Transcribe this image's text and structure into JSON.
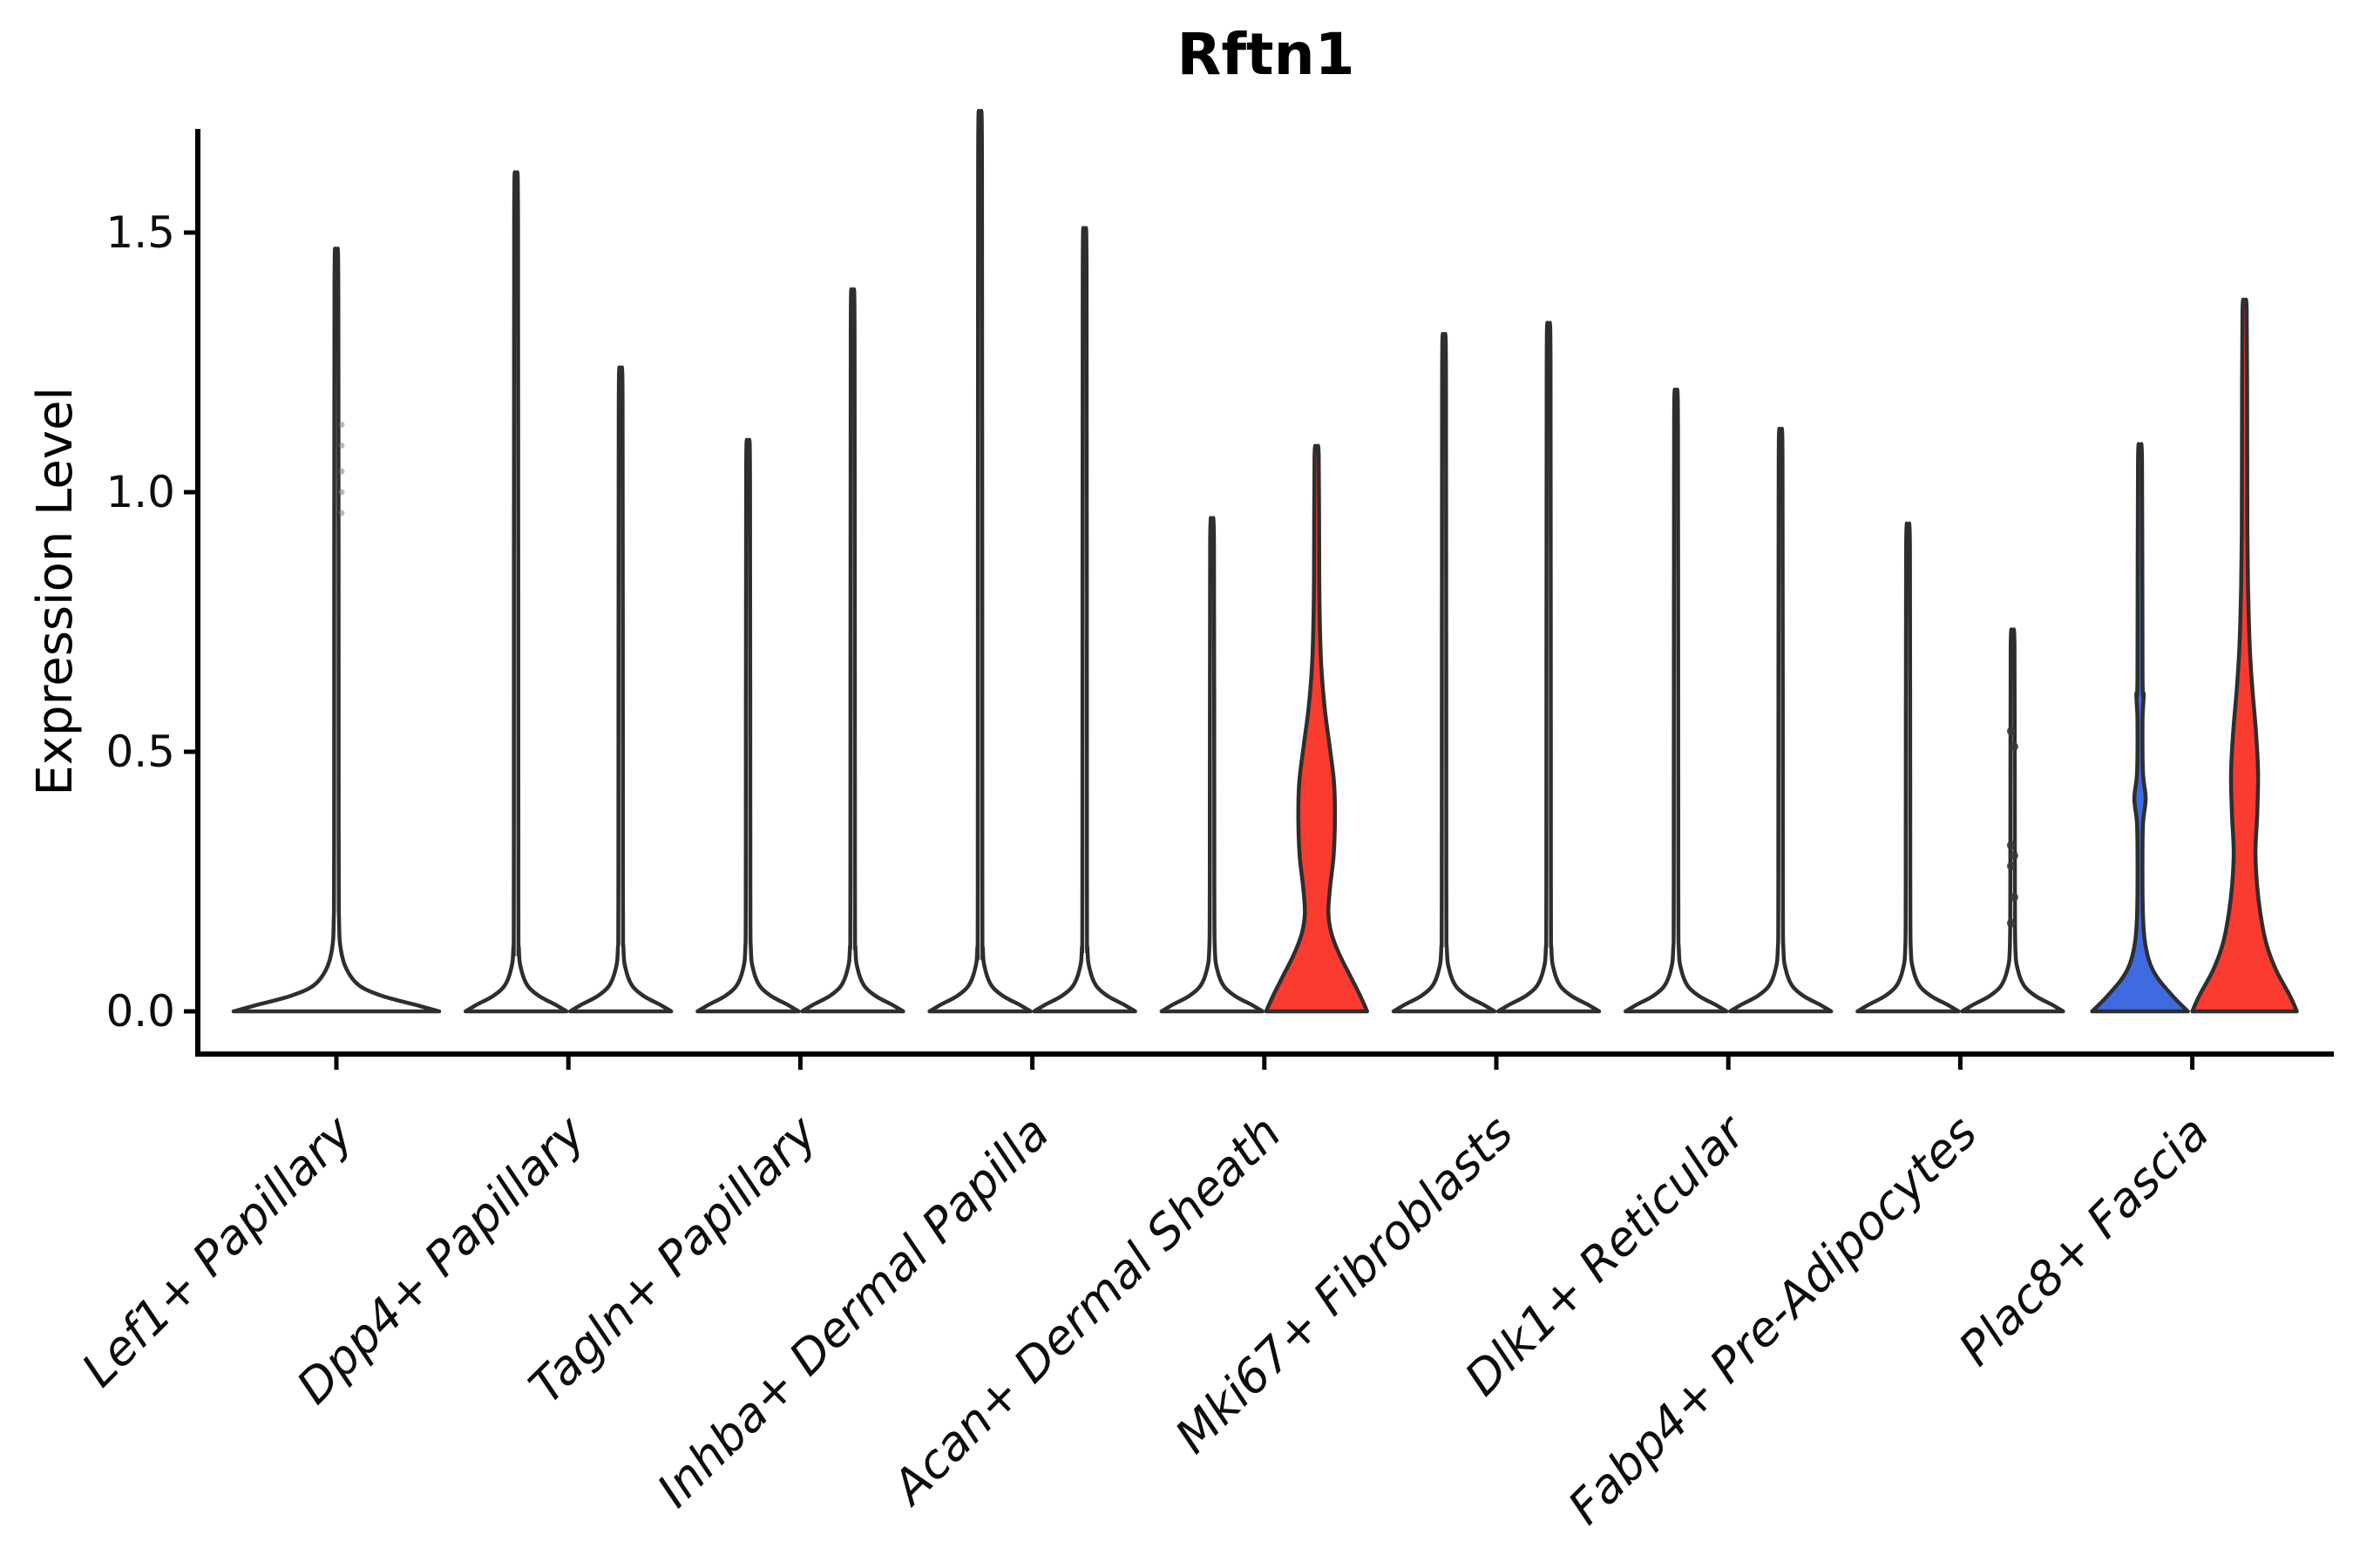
{
  "chart_data": {
    "type": "violin",
    "title": "Rftn1",
    "ylabel": "Expression Level",
    "xlabel": "",
    "ylim": [
      -0.08,
      1.7
    ],
    "grid": false,
    "legend": "none",
    "y_ticks": [
      {
        "value": 0.0,
        "label": "0.0"
      },
      {
        "value": 0.5,
        "label": "0.5"
      },
      {
        "value": 1.0,
        "label": "1.0"
      },
      {
        "value": 1.5,
        "label": "1.5"
      }
    ],
    "categories": [
      "Lef1+ Papillary",
      "Dpp4+ Papillary",
      "Tagln+ Papillary",
      "Inhba+ Dermal Papilla",
      "Acan+ Dermal Sheath",
      "Mki67+ Fibroblasts",
      "Dlk1+ Reticular",
      "Fabp4+ Pre-Adipocytes",
      "Plac8+ Fascia"
    ],
    "colors": {
      "white": "#FFFFFF",
      "blue": "#3F6AE0",
      "red": "#F93B30",
      "violin_outline": "#2E2E2E",
      "axis": "#000000",
      "point": "#3A3A3A",
      "faint_point": "#777777"
    },
    "violins": [
      {
        "category": "Lef1+ Papillary",
        "slot": 0,
        "side": "full",
        "fill": "white",
        "max_expression": 1.39,
        "profile": [
          [
            0,
            118
          ],
          [
            0.012,
            92
          ],
          [
            0.03,
            52
          ],
          [
            0.05,
            26
          ],
          [
            0.08,
            12
          ],
          [
            0.12,
            5
          ],
          [
            0.18,
            3
          ],
          [
            0.35,
            2.6
          ],
          [
            1.39,
            2.2
          ]
        ],
        "points": [
          0.96,
          1.0,
          1.04,
          1.09,
          1.13
        ],
        "points_faint": true
      },
      {
        "category": "Dpp4+ Papillary",
        "slot": 1,
        "side": "left",
        "fill": "white",
        "max_expression": 1.52,
        "profile": [
          [
            0,
            58
          ],
          [
            0.012,
            46
          ],
          [
            0.03,
            26
          ],
          [
            0.05,
            13
          ],
          [
            0.08,
            6
          ],
          [
            0.12,
            3.2
          ],
          [
            0.25,
            2.6
          ],
          [
            1.52,
            2.2
          ]
        ],
        "points": []
      },
      {
        "category": "Dpp4+ Papillary",
        "slot": 1,
        "side": "right",
        "fill": "white",
        "max_expression": 1.17,
        "profile": [
          [
            0,
            58
          ],
          [
            0.012,
            46
          ],
          [
            0.03,
            26
          ],
          [
            0.05,
            13
          ],
          [
            0.08,
            6
          ],
          [
            0.12,
            3.2
          ],
          [
            0.25,
            2.6
          ],
          [
            1.17,
            2.2
          ]
        ],
        "points": []
      },
      {
        "category": "Tagln+ Papillary",
        "slot": 2,
        "side": "left",
        "fill": "white",
        "max_expression": 1.04,
        "profile": [
          [
            0,
            58
          ],
          [
            0.012,
            46
          ],
          [
            0.03,
            26
          ],
          [
            0.05,
            13
          ],
          [
            0.08,
            6
          ],
          [
            0.12,
            3.2
          ],
          [
            0.25,
            2.6
          ],
          [
            1.04,
            2.2
          ]
        ],
        "points": []
      },
      {
        "category": "Tagln+ Papillary",
        "slot": 2,
        "side": "right",
        "fill": "white",
        "max_expression": 1.31,
        "profile": [
          [
            0,
            58
          ],
          [
            0.012,
            46
          ],
          [
            0.03,
            26
          ],
          [
            0.05,
            13
          ],
          [
            0.08,
            6
          ],
          [
            0.12,
            3.2
          ],
          [
            0.25,
            2.6
          ],
          [
            1.31,
            2.2
          ]
        ],
        "points": []
      },
      {
        "category": "Inhba+ Dermal Papilla",
        "slot": 3,
        "side": "left",
        "fill": "white",
        "max_expression": 1.63,
        "profile": [
          [
            0,
            58
          ],
          [
            0.012,
            46
          ],
          [
            0.03,
            26
          ],
          [
            0.05,
            13
          ],
          [
            0.08,
            6
          ],
          [
            0.12,
            3.2
          ],
          [
            0.25,
            2.6
          ],
          [
            1.63,
            2.2
          ]
        ],
        "points": []
      },
      {
        "category": "Inhba+ Dermal Papilla",
        "slot": 3,
        "side": "right",
        "fill": "white",
        "max_expression": 1.42,
        "profile": [
          [
            0,
            58
          ],
          [
            0.012,
            46
          ],
          [
            0.03,
            26
          ],
          [
            0.05,
            13
          ],
          [
            0.08,
            6
          ],
          [
            0.12,
            3.2
          ],
          [
            0.25,
            2.6
          ],
          [
            1.42,
            2.2
          ]
        ],
        "points": []
      },
      {
        "category": "Acan+ Dermal Sheath",
        "slot": 4,
        "side": "left",
        "fill": "white",
        "max_expression": 0.9,
        "profile": [
          [
            0,
            58
          ],
          [
            0.012,
            46
          ],
          [
            0.03,
            26
          ],
          [
            0.05,
            13
          ],
          [
            0.08,
            6
          ],
          [
            0.12,
            3.2
          ],
          [
            0.25,
            2.6
          ],
          [
            0.9,
            2.2
          ]
        ],
        "points": []
      },
      {
        "category": "Acan+ Dermal Sheath",
        "slot": 4,
        "side": "right",
        "fill": "red",
        "max_expression": 1.07,
        "profile": [
          [
            0,
            58
          ],
          [
            0.03,
            50
          ],
          [
            0.07,
            38
          ],
          [
            0.11,
            26
          ],
          [
            0.15,
            17
          ],
          [
            0.19,
            13.5
          ],
          [
            0.24,
            15.5
          ],
          [
            0.3,
            19.5
          ],
          [
            0.37,
            21
          ],
          [
            0.44,
            20
          ],
          [
            0.51,
            15
          ],
          [
            0.58,
            9.5
          ],
          [
            0.66,
            5.5
          ],
          [
            0.74,
            3.8
          ],
          [
            0.84,
            3
          ],
          [
            1.07,
            2.4
          ]
        ],
        "points": []
      },
      {
        "category": "Mki67+ Fibroblasts",
        "slot": 5,
        "side": "left",
        "fill": "white",
        "max_expression": 1.23,
        "profile": [
          [
            0,
            58
          ],
          [
            0.012,
            46
          ],
          [
            0.03,
            26
          ],
          [
            0.05,
            13
          ],
          [
            0.08,
            6
          ],
          [
            0.12,
            3.2
          ],
          [
            0.25,
            2.6
          ],
          [
            1.23,
            2.2
          ]
        ],
        "points": []
      },
      {
        "category": "Mki67+ Fibroblasts",
        "slot": 5,
        "side": "right",
        "fill": "white",
        "max_expression": 1.25,
        "profile": [
          [
            0,
            58
          ],
          [
            0.012,
            46
          ],
          [
            0.03,
            26
          ],
          [
            0.05,
            13
          ],
          [
            0.08,
            6
          ],
          [
            0.12,
            3.2
          ],
          [
            0.25,
            2.6
          ],
          [
            1.25,
            2.2
          ]
        ],
        "points": []
      },
      {
        "category": "Dlk1+ Reticular",
        "slot": 6,
        "side": "left",
        "fill": "white",
        "max_expression": 1.13,
        "profile": [
          [
            0,
            58
          ],
          [
            0.012,
            46
          ],
          [
            0.03,
            26
          ],
          [
            0.05,
            13
          ],
          [
            0.08,
            6
          ],
          [
            0.12,
            3.2
          ],
          [
            0.25,
            2.6
          ],
          [
            1.13,
            2.2
          ]
        ],
        "points": []
      },
      {
        "category": "Dlk1+ Reticular",
        "slot": 6,
        "side": "right",
        "fill": "white",
        "max_expression": 1.06,
        "profile": [
          [
            0,
            58
          ],
          [
            0.012,
            46
          ],
          [
            0.03,
            26
          ],
          [
            0.05,
            13
          ],
          [
            0.08,
            6
          ],
          [
            0.12,
            3.2
          ],
          [
            0.25,
            2.6
          ],
          [
            1.06,
            2.2
          ]
        ],
        "points": []
      },
      {
        "category": "Fabp4+ Pre-Adipocytes",
        "slot": 7,
        "side": "left",
        "fill": "white",
        "max_expression": 0.89,
        "profile": [
          [
            0,
            58
          ],
          [
            0.012,
            46
          ],
          [
            0.03,
            26
          ],
          [
            0.05,
            13
          ],
          [
            0.08,
            6
          ],
          [
            0.12,
            3.2
          ],
          [
            0.25,
            2.6
          ],
          [
            0.89,
            2.2
          ]
        ],
        "points": []
      },
      {
        "category": "Fabp4+ Pre-Adipocytes",
        "slot": 7,
        "side": "right",
        "fill": "white",
        "max_expression": 0.7,
        "profile": [
          [
            0,
            58
          ],
          [
            0.012,
            46
          ],
          [
            0.03,
            26
          ],
          [
            0.05,
            13
          ],
          [
            0.08,
            6
          ],
          [
            0.12,
            3.2
          ],
          [
            0.25,
            2.6
          ],
          [
            0.7,
            2.2
          ]
        ],
        "points": [
          0.17,
          0.22,
          0.28,
          0.3,
          0.32,
          0.51,
          0.54
        ],
        "points_faint": false
      },
      {
        "category": "Plac8+ Fascia",
        "slot": 8,
        "side": "left",
        "fill": "blue",
        "max_expression": 1.06,
        "profile": [
          [
            0,
            55
          ],
          [
            0.025,
            40
          ],
          [
            0.06,
            22
          ],
          [
            0.09,
            12
          ],
          [
            0.13,
            6
          ],
          [
            0.18,
            3.5
          ],
          [
            0.27,
            2.8
          ],
          [
            0.36,
            3.4
          ],
          [
            0.41,
            6.5
          ],
          [
            0.46,
            3.4
          ],
          [
            0.56,
            2.9
          ],
          [
            0.61,
            4.2
          ],
          [
            0.65,
            2.9
          ],
          [
            1.06,
            2.3
          ]
        ],
        "points": []
      },
      {
        "category": "Plac8+ Fascia",
        "slot": 8,
        "side": "right",
        "fill": "red",
        "max_expression": 1.35,
        "profile": [
          [
            0,
            60
          ],
          [
            0.03,
            52
          ],
          [
            0.08,
            36
          ],
          [
            0.13,
            25
          ],
          [
            0.19,
            18
          ],
          [
            0.25,
            14
          ],
          [
            0.31,
            12.5
          ],
          [
            0.38,
            14.5
          ],
          [
            0.46,
            15.5
          ],
          [
            0.54,
            13
          ],
          [
            0.62,
            9
          ],
          [
            0.7,
            6
          ],
          [
            0.8,
            4.2
          ],
          [
            0.92,
            3.2
          ],
          [
            1.1,
            3
          ],
          [
            1.35,
            2.4
          ]
        ],
        "points": []
      }
    ]
  }
}
